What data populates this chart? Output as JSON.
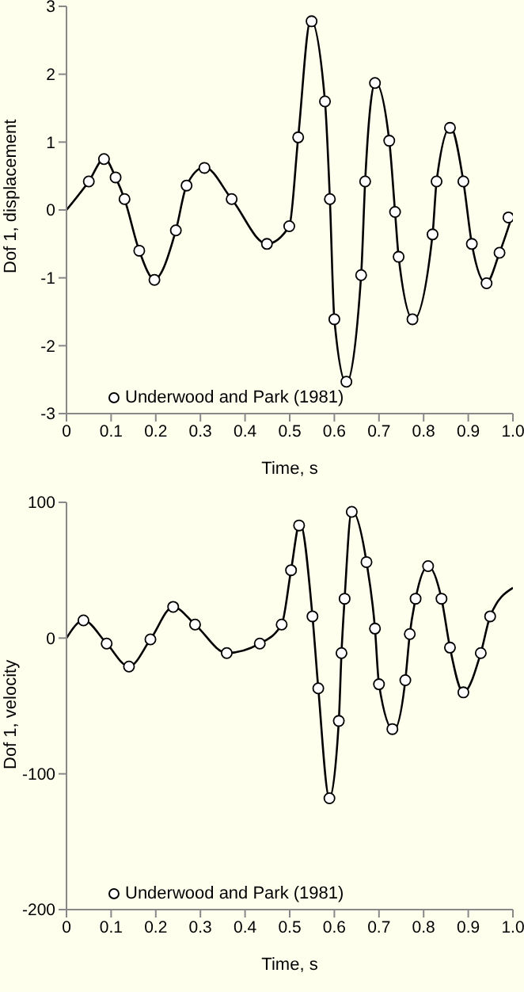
{
  "chart_data": [
    {
      "type": "line",
      "xlabel": "Time, s",
      "ylabel": "Dof 1, displacement",
      "xlim": [
        0,
        1.0
      ],
      "xticks": [
        0,
        0.1,
        0.2,
        0.3,
        0.4,
        0.5,
        0.6,
        0.7,
        0.8,
        0.9,
        {
          "value": 1.0,
          "label": "1.0"
        }
      ],
      "ylim": [
        -3,
        3
      ],
      "yticks": [
        -3,
        -2,
        -1,
        0,
        1,
        2,
        3
      ],
      "grid": false,
      "legend": "bottom left",
      "series": [
        {
          "type": "line",
          "color": "#000000",
          "line_style": "solid",
          "marker": "none",
          "x": [
            0,
            0.05,
            0.085,
            0.11,
            0.13,
            0.163,
            0.197,
            0.245,
            0.269,
            0.309,
            0.37,
            0.449,
            0.499,
            0.519,
            0.547,
            0.579,
            0.59,
            0.6,
            0.627,
            0.66,
            0.669,
            0.692,
            0.723,
            0.736,
            0.744,
            0.777,
            0.82,
            0.829,
            0.86,
            0.889,
            0.908,
            0.94,
            0.97,
            1.0
          ],
          "values": [
            0,
            0.42,
            0.76,
            0.48,
            0.16,
            -0.6,
            -1.02,
            -0.3,
            0.36,
            0.63,
            0.16,
            -0.5,
            -0.24,
            1.07,
            2.8,
            1.6,
            0.16,
            -1.61,
            -2.55,
            -0.96,
            0.42,
            1.88,
            1.02,
            -0.03,
            -0.69,
            -1.62,
            -0.36,
            0.42,
            1.22,
            0.42,
            -0.5,
            -1.08,
            -0.63,
            -0.05
          ]
        },
        {
          "type": "scatter",
          "name": "Underwood and Park (1981)",
          "color": "#000000",
          "marker": "circle",
          "x": [
            0.05,
            0.084,
            0.11,
            0.13,
            0.163,
            0.197,
            0.245,
            0.269,
            0.309,
            0.37,
            0.449,
            0.499,
            0.519,
            0.549,
            0.579,
            0.59,
            0.6,
            0.627,
            0.66,
            0.669,
            0.691,
            0.723,
            0.736,
            0.744,
            0.775,
            0.82,
            0.829,
            0.859,
            0.889,
            0.908,
            0.941,
            0.97,
            0.99
          ],
          "values": [
            0.42,
            0.75,
            0.48,
            0.16,
            -0.6,
            -1.03,
            -0.3,
            0.36,
            0.62,
            0.16,
            -0.5,
            -0.24,
            1.07,
            2.78,
            1.6,
            0.16,
            -1.61,
            -2.53,
            -0.96,
            0.42,
            1.87,
            1.02,
            -0.03,
            -0.69,
            -1.61,
            -0.36,
            0.42,
            1.21,
            0.42,
            -0.5,
            -1.08,
            -0.63,
            -0.11
          ]
        }
      ]
    },
    {
      "type": "line",
      "xlabel": "Time, s",
      "ylabel": "Dof 1, velocity",
      "xlim": [
        0,
        1.0
      ],
      "xticks": [
        0,
        0.1,
        0.2,
        0.3,
        0.4,
        0.5,
        0.6,
        0.7,
        0.8,
        0.9,
        {
          "value": 1.0,
          "label": "1.0"
        }
      ],
      "ylim": [
        -200,
        100
      ],
      "yticks": [
        -200,
        -100,
        0,
        100
      ],
      "grid": false,
      "legend": "bottom left",
      "series": [
        {
          "type": "line",
          "color": "#000000",
          "line_style": "solid",
          "marker": "none",
          "x": [
            0,
            0.038,
            0.09,
            0.14,
            0.188,
            0.239,
            0.288,
            0.359,
            0.433,
            0.482,
            0.503,
            0.523,
            0.551,
            0.564,
            0.589,
            0.61,
            0.616,
            0.623,
            0.639,
            0.672,
            0.691,
            0.7,
            0.733,
            0.759,
            0.769,
            0.782,
            0.81,
            0.84,
            0.859,
            0.889,
            0.928,
            0.949,
            1.0
          ],
          "values": [
            0,
            13,
            -4,
            -21,
            -1,
            23,
            10,
            -11,
            -4,
            10,
            50,
            85,
            16,
            -37,
            -118,
            -61,
            -11,
            29,
            94,
            56,
            7,
            -34,
            -68,
            -31,
            3,
            29,
            53,
            29,
            -7,
            -40,
            -11,
            16,
            37
          ]
        },
        {
          "type": "scatter",
          "name": "Underwood and Park (1981)",
          "color": "#000000",
          "marker": "circle",
          "x": [
            0.038,
            0.09,
            0.14,
            0.188,
            0.239,
            0.288,
            0.359,
            0.433,
            0.482,
            0.503,
            0.521,
            0.551,
            0.564,
            0.589,
            0.61,
            0.616,
            0.623,
            0.639,
            0.672,
            0.691,
            0.7,
            0.73,
            0.759,
            0.769,
            0.782,
            0.81,
            0.84,
            0.859,
            0.889,
            0.928,
            0.949
          ],
          "values": [
            13,
            -4,
            -21,
            -1,
            23,
            10,
            -11,
            -4,
            10,
            50,
            83,
            16,
            -37,
            -118,
            -61,
            -11,
            29,
            93,
            56,
            7,
            -34,
            -67,
            -31,
            3,
            29,
            53,
            29,
            -7,
            -40,
            -11,
            16
          ]
        }
      ]
    }
  ]
}
